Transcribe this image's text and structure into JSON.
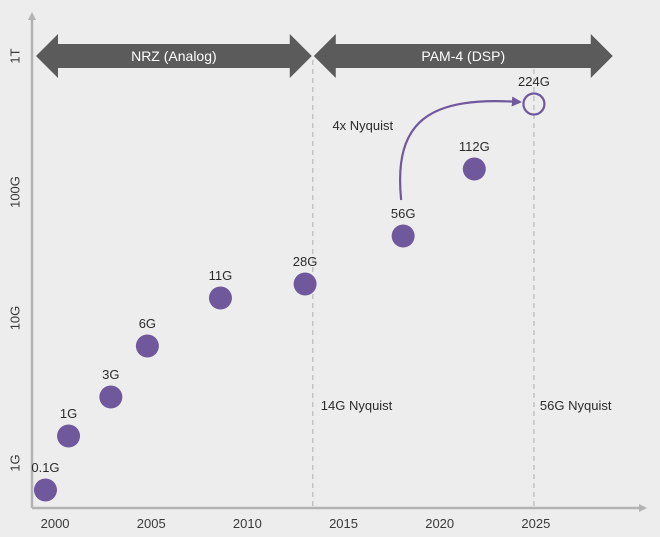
{
  "chart_data": {
    "type": "scatter",
    "title": "",
    "xlabel": "",
    "ylabel": "",
    "x_ticks": [
      "2000",
      "2005",
      "2010",
      "2015",
      "2020",
      "2025"
    ],
    "y_ticks": [
      "1G",
      "10G",
      "100G",
      "1T"
    ],
    "y_scale": "log",
    "xlim": [
      1998.8,
      2030
    ],
    "point_color": "#70589c",
    "series": [
      {
        "points": [
          {
            "x": 1999.5,
            "y": 0.1,
            "label": "0.1G"
          },
          {
            "x": 2000.7,
            "y": 1,
            "label": "1G"
          },
          {
            "x": 2002.9,
            "y": 3,
            "label": "3G"
          },
          {
            "x": 2004.8,
            "y": 6,
            "label": "6G"
          },
          {
            "x": 2008.6,
            "y": 11,
            "label": "11G"
          },
          {
            "x": 2013.0,
            "y": 28,
            "label": "28G"
          },
          {
            "x": 2018.1,
            "y": 56,
            "label": "56G"
          },
          {
            "x": 2021.8,
            "y": 112,
            "label": "112G"
          },
          {
            "x": 2024.9,
            "y": 224,
            "label": "224G",
            "hollow": true
          }
        ]
      }
    ],
    "banners": [
      {
        "label": "NRZ (Analog)",
        "x_start": 1998.8,
        "x_end": 2013.4
      },
      {
        "label": "PAM-4 (DSP)",
        "x_start": 2013.4,
        "x_end": 2029.0
      }
    ],
    "reference_lines": [
      {
        "x": 2013.4,
        "label": "14G Nyquist"
      },
      {
        "x": 2024.9,
        "label": "56G Nyquist"
      }
    ],
    "annotation": {
      "label": "4x Nyquist",
      "from": "56G",
      "to": "224G"
    }
  }
}
